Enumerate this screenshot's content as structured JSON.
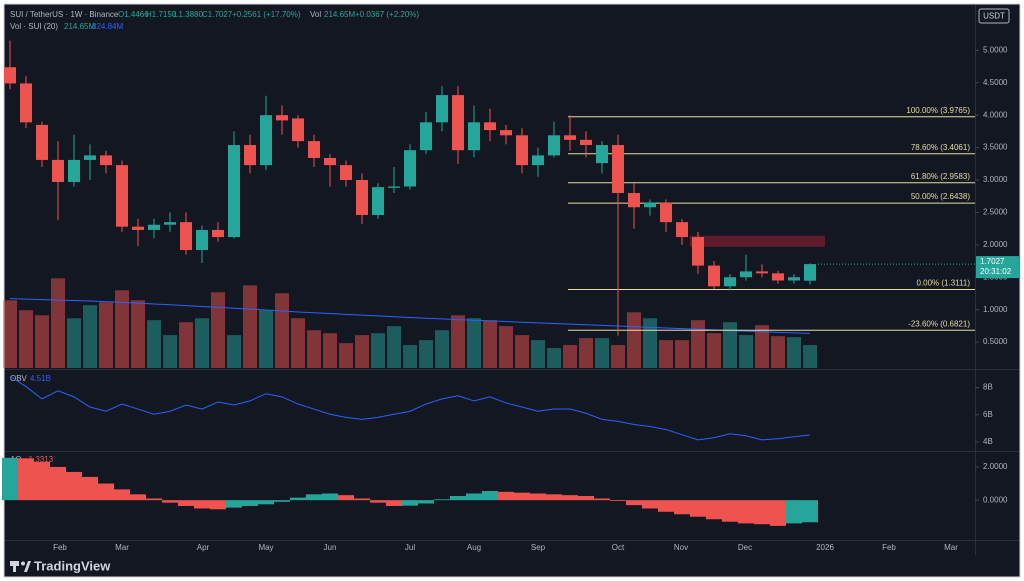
{
  "chart_data": {
    "type": "candlestick",
    "title": "SUI / TetherUS · 1W · Binance",
    "ohlc_text": [
      "O1.4466",
      "H1.7150",
      "L1.3880",
      "C1.7027",
      "+0.2561 (+17.70%)"
    ],
    "vol_text": [
      "Vol",
      "214.65M",
      "+0.0367 (+2.20%)"
    ],
    "currency": "USDT",
    "countdown": "20:31:02",
    "brand": "TradingView",
    "up_color": "#26a69a",
    "down_color": "#ef5350",
    "ylim": [
      0.1,
      5.7
    ],
    "yticks": [
      {
        "value": 5,
        "label": "5.0000"
      },
      {
        "value": 4.5,
        "label": "4.5000"
      },
      {
        "value": 4,
        "label": "4.0000"
      },
      {
        "value": 3.5,
        "label": "3.5000"
      },
      {
        "value": 3,
        "label": "3.0000"
      },
      {
        "value": 2.5,
        "label": "2.5000"
      },
      {
        "value": 2,
        "label": "2.0000"
      },
      {
        "value": 1.5,
        "label": "1.5000"
      },
      {
        "value": 1,
        "label": "1.0000"
      },
      {
        "value": 0.5,
        "label": "0.5000"
      }
    ],
    "x_labels": [
      "Feb",
      "Mar",
      "Apr",
      "May",
      "Jun",
      "Jul",
      "Aug",
      "Sep",
      "Oct",
      "Nov",
      "Dec",
      "2026",
      "Feb",
      "Mar"
    ],
    "open": [
      4.74,
      4.49,
      3.85,
      3.31,
      2.97,
      3.31,
      3.38,
      3.23,
      2.28,
      2.23,
      2.31,
      2.35,
      1.92,
      2.23,
      2.12,
      3.54,
      3.23,
      4.0,
      3.95,
      3.6,
      3.34,
      3.23,
      3.0,
      2.46,
      2.88,
      2.9,
      3.46,
      3.89,
      4.31,
      3.46,
      3.89,
      3.77,
      3.69,
      3.23,
      3.38,
      3.69,
      3.62,
      3.26,
      3.54,
      2.8,
      2.58,
      2.65,
      2.35,
      2.12,
      1.68,
      1.36,
      1.5,
      1.59,
      1.56,
      1.45,
      1.4466
    ],
    "high": [
      5.15,
      4.6,
      3.9,
      3.6,
      3.7,
      3.55,
      3.45,
      3.3,
      2.4,
      2.4,
      2.5,
      2.5,
      2.3,
      2.35,
      3.75,
      3.7,
      4.3,
      4.15,
      4.0,
      3.7,
      3.4,
      3.3,
      3.1,
      2.95,
      3.2,
      3.55,
      4.05,
      4.45,
      4.45,
      4.15,
      4.1,
      3.85,
      3.8,
      3.5,
      3.9,
      4.0,
      3.75,
      3.6,
      3.7,
      2.95,
      2.7,
      2.7,
      2.4,
      2.2,
      1.75,
      1.55,
      1.85,
      1.7,
      1.6,
      1.55,
      1.715
    ],
    "low": [
      4.4,
      3.8,
      3.2,
      2.38,
      2.9,
      3.0,
      3.1,
      2.2,
      1.98,
      2.1,
      2.2,
      1.85,
      1.72,
      2.05,
      2.1,
      3.1,
      3.15,
      3.7,
      3.5,
      3.2,
      2.9,
      2.9,
      2.32,
      2.4,
      2.8,
      2.85,
      3.4,
      3.75,
      3.25,
      3.35,
      3.6,
      3.55,
      3.1,
      3.05,
      3.35,
      3.45,
      3.35,
      3.1,
      0.6,
      2.25,
      2.45,
      2.2,
      2.0,
      1.55,
      1.32,
      1.3,
      1.45,
      1.5,
      1.4,
      1.4,
      1.388
    ],
    "close": [
      4.49,
      3.89,
      3.31,
      2.97,
      3.31,
      3.38,
      3.23,
      2.28,
      2.23,
      2.31,
      2.35,
      1.92,
      2.23,
      2.12,
      3.54,
      3.23,
      4.0,
      3.92,
      3.6,
      3.34,
      3.23,
      3.0,
      2.46,
      2.89,
      2.9,
      3.46,
      3.89,
      4.31,
      3.46,
      3.89,
      3.77,
      3.69,
      3.23,
      3.38,
      3.69,
      3.62,
      3.54,
      3.54,
      2.8,
      2.58,
      2.65,
      2.35,
      2.12,
      1.68,
      1.36,
      1.5,
      1.59,
      1.56,
      1.45,
      1.5,
      1.7027
    ],
    "zone": [
      1.97,
      2.14
    ],
    "fib": [
      {
        "value": 3.9765,
        "label": "100.00% (3.9765)"
      },
      {
        "value": 3.4061,
        "label": "78.60% (3.4061)"
      },
      {
        "value": 2.9583,
        "label": "61.80% (2.9583)"
      },
      {
        "value": 2.6438,
        "label": "50.00% (2.6438)"
      },
      {
        "value": 1.3111,
        "label": "0.00% (1.3111)"
      },
      {
        "value": 0.6821,
        "label": "-23.60% (0.6821)"
      }
    ],
    "volume": {
      "name": "Vol · SUI (20)",
      "last_label": "214.65M",
      "ma_label": "324.84M",
      "ma_color": "#2962ff",
      "ylim": [
        0,
        3400
      ],
      "values": [
        634,
        541,
        494,
        840,
        466,
        588,
        616,
        728,
        634,
        448,
        308,
        429,
        466,
        709,
        308,
        774,
        541,
        700,
        466,
        354,
        326,
        233,
        308,
        326,
        392,
        215,
        261,
        354,
        494,
        466,
        448,
        392,
        308,
        261,
        187,
        215,
        280,
        280,
        215,
        522,
        466,
        261,
        261,
        448,
        326,
        429,
        308,
        401,
        298,
        289,
        214.65
      ],
      "ma": [
        650,
        645,
        640,
        636,
        632,
        628,
        622,
        615,
        608,
        600,
        592,
        584,
        576,
        568,
        560,
        552,
        543,
        535,
        525,
        518,
        510,
        502,
        495,
        488,
        480,
        473,
        466,
        460,
        453,
        447,
        441,
        435,
        429,
        423,
        417,
        411,
        405,
        399,
        393,
        387,
        381,
        375,
        369,
        363,
        357,
        351,
        345,
        339,
        334,
        329,
        324.84
      ]
    },
    "obv": {
      "name": "OBV",
      "last_label": "4.51B",
      "color": "#2962ff",
      "ylim": [
        3.4,
        9.3
      ],
      "yticks": [
        {
          "value": 8,
          "label": "8B"
        },
        {
          "value": 6,
          "label": "6B"
        },
        {
          "value": 4,
          "label": "4B"
        }
      ],
      "values": [
        8.83,
        8.08,
        7.17,
        7.77,
        7.32,
        6.57,
        6.26,
        6.79,
        6.42,
        6.04,
        6.26,
        6.72,
        6.42,
        6.94,
        6.72,
        7.02,
        7.55,
        7.32,
        6.79,
        6.42,
        6.04,
        5.81,
        5.66,
        5.81,
        6.04,
        6.26,
        6.79,
        7.17,
        7.4,
        7.02,
        7.32,
        6.87,
        6.57,
        6.26,
        6.42,
        6.42,
        6.11,
        5.66,
        5.51,
        5.28,
        5.13,
        4.91,
        4.53,
        4.15,
        4.3,
        4.6,
        4.45,
        4.15,
        4.23,
        4.38,
        4.51
      ]
    },
    "ao": {
      "name": "AO",
      "last_label": "-1.3313",
      "ylim": [
        -2.4,
        2.9
      ],
      "yticks": [
        {
          "value": 2,
          "label": "2.0000"
        },
        {
          "value": 0,
          "label": "0.0000"
        }
      ],
      "values": [
        2.55,
        2.52,
        2.3,
        2.0,
        1.7,
        1.4,
        1.0,
        0.65,
        0.35,
        0.1,
        -0.15,
        -0.35,
        -0.5,
        -0.55,
        -0.45,
        -0.35,
        -0.25,
        -0.1,
        0.15,
        0.35,
        0.4,
        0.3,
        0.1,
        -0.15,
        -0.35,
        -0.33,
        -0.2,
        0.05,
        0.25,
        0.4,
        0.55,
        0.5,
        0.45,
        0.4,
        0.35,
        0.3,
        0.25,
        0.1,
        -0.05,
        -0.3,
        -0.5,
        -0.7,
        -0.85,
        -1.0,
        -1.15,
        -1.3,
        -1.4,
        -1.45,
        -1.55,
        -1.4,
        -1.3313
      ]
    }
  }
}
